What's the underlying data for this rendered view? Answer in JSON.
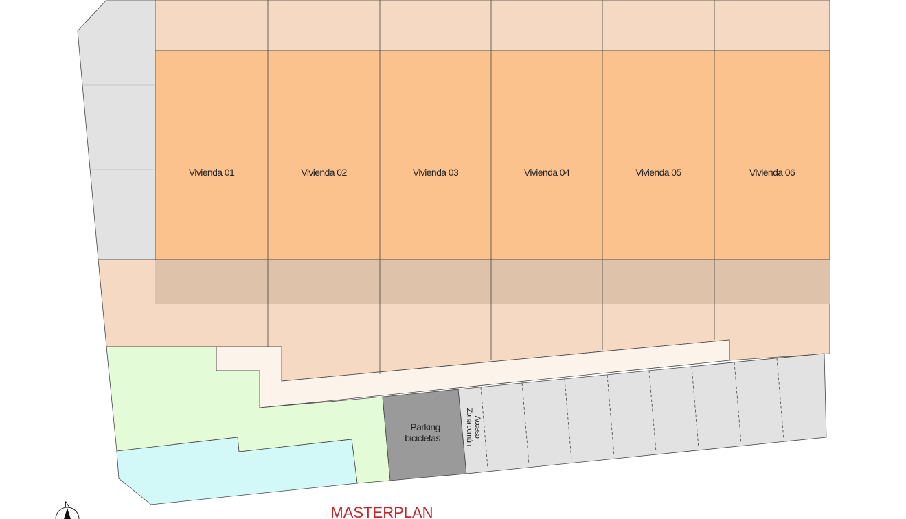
{
  "title": "MASTERPLAN",
  "viviendas": [
    "Vivienda 01",
    "Vivienda 02",
    "Vivienda 03",
    "Vivienda 04",
    "Vivienda 05",
    "Vivienda 06"
  ],
  "parking": {
    "line1": "Parking",
    "line2": "bicicletas"
  },
  "acceso": {
    "line1": "Acceso",
    "line2": "Zona común"
  },
  "compass": {
    "label": "N"
  },
  "colors": {
    "vivienda": "#fbc28e",
    "patio": "#f6d9c2",
    "porch": "#dec3aa",
    "path": "#fcf3ea",
    "garden": "#e3fbd7",
    "pool": "#d2f9f8",
    "parking": "#9a9a9a",
    "street": "#e2e2e2",
    "title": "#c0282d"
  }
}
